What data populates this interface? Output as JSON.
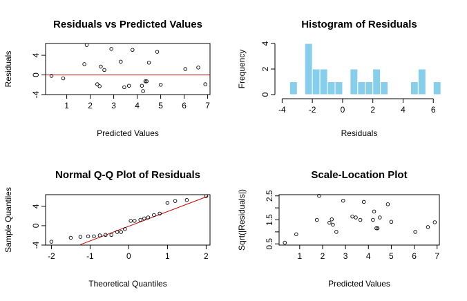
{
  "chart_data": [
    {
      "id": "residuals-vs-predicted",
      "type": "scatter",
      "title": "Residuals vs Predicted Values",
      "xlabel": "Predicted Values",
      "ylabel": "Residuals",
      "xlim": [
        0.1,
        7.1
      ],
      "ylim": [
        -4.0,
        6.4
      ],
      "xticks": [
        1,
        2,
        3,
        4,
        5,
        6,
        7
      ],
      "yticks": [
        -4,
        0,
        4
      ],
      "hline": {
        "y": 0,
        "color": "#cc0000"
      },
      "x": [
        0.35,
        0.85,
        1.75,
        1.85,
        2.3,
        2.4,
        2.45,
        2.6,
        2.9,
        3.3,
        3.45,
        3.65,
        3.8,
        4.2,
        4.25,
        4.35,
        4.4,
        4.5,
        4.85,
        5.0,
        6.05,
        6.6,
        6.9
      ],
      "y": [
        -0.2,
        -0.7,
        2.2,
        6.1,
        -1.9,
        -2.3,
        1.7,
        1.0,
        5.3,
        2.7,
        -2.5,
        -2.2,
        5.1,
        -2.2,
        -3.3,
        -1.3,
        -1.3,
        2.5,
        4.7,
        -2.0,
        1.2,
        1.5,
        -1.9
      ]
    },
    {
      "id": "histogram-residuals",
      "type": "bar",
      "title": "Histogram of Residuals",
      "xlabel": "Residuals",
      "ylabel": "Frequency",
      "xlim": [
        -4.2,
        6.4
      ],
      "ylim": [
        0,
        4
      ],
      "xticks": [
        -4,
        -2,
        0,
        2,
        4,
        6
      ],
      "yticks": [
        0,
        2,
        4
      ],
      "bin_width": 0.5,
      "bin_starts": [
        -4.0,
        -3.5,
        -3.0,
        -2.5,
        -2.0,
        -1.5,
        -1.0,
        -0.5,
        0.0,
        0.5,
        1.0,
        1.5,
        2.0,
        2.5,
        3.0,
        3.5,
        4.0,
        4.5,
        5.0,
        5.5,
        6.0
      ],
      "values": [
        0,
        1,
        0,
        4,
        2,
        2,
        1,
        1,
        0,
        2,
        1,
        1,
        2,
        1,
        0,
        0,
        0,
        1,
        2,
        0,
        1
      ],
      "color": "#87ceeb"
    },
    {
      "id": "normal-qq",
      "type": "scatter",
      "title": "Normal Q-Q Plot of Residuals",
      "xlabel": "Theoretical Quantiles",
      "ylabel": "Sample Quantiles",
      "xlim": [
        -2.15,
        2.1
      ],
      "ylim": [
        -4.0,
        6.4
      ],
      "xticks": [
        -2,
        -1,
        0,
        1,
        2
      ],
      "yticks": [
        -4,
        0,
        4
      ],
      "line": {
        "x": [
          -1.25,
          2.05
        ],
        "y": [
          -3.9,
          6.1
        ],
        "color": "#cc0000"
      },
      "x": [
        -2.0,
        -1.5,
        -1.25,
        -1.05,
        -0.9,
        -0.75,
        -0.6,
        -0.45,
        -0.3,
        -0.2,
        -0.1,
        0.05,
        0.15,
        0.3,
        0.4,
        0.5,
        0.65,
        0.8,
        1.0,
        1.2,
        1.5,
        2.0
      ],
      "y": [
        -3.3,
        -2.5,
        -2.3,
        -2.2,
        -2.2,
        -2.0,
        -1.9,
        -1.9,
        -1.3,
        -1.3,
        -0.7,
        1.0,
        1.0,
        1.2,
        1.5,
        1.7,
        2.2,
        2.5,
        4.7,
        5.1,
        5.3,
        6.1
      ]
    },
    {
      "id": "scale-location",
      "type": "scatter",
      "title": "Scale-Location Plot",
      "xlabel": "Predicted Values",
      "ylabel": "Sqrt(|Residuals|)",
      "xlim": [
        0.1,
        7.1
      ],
      "ylim": [
        0.45,
        2.55
      ],
      "xticks": [
        1,
        2,
        3,
        4,
        5,
        6,
        7
      ],
      "yticks": [
        0.5,
        1.0,
        1.5,
        2.0,
        2.5
      ],
      "yticklabels": [
        "0.5",
        "1.5",
        "2.5"
      ],
      "yticklabel_values": [
        0.5,
        1.5,
        2.5
      ],
      "x": [
        0.35,
        0.85,
        1.75,
        1.85,
        2.3,
        2.4,
        2.45,
        2.6,
        2.9,
        3.3,
        3.45,
        3.65,
        3.8,
        4.2,
        4.25,
        4.35,
        4.4,
        4.5,
        4.85,
        5.0,
        6.05,
        6.6,
        6.9
      ],
      "y": [
        0.55,
        0.9,
        1.5,
        2.5,
        1.38,
        1.52,
        1.3,
        1.0,
        2.3,
        1.64,
        1.6,
        1.5,
        2.25,
        1.5,
        1.85,
        1.15,
        1.15,
        1.6,
        2.15,
        1.42,
        1.0,
        1.2,
        1.4
      ]
    }
  ]
}
